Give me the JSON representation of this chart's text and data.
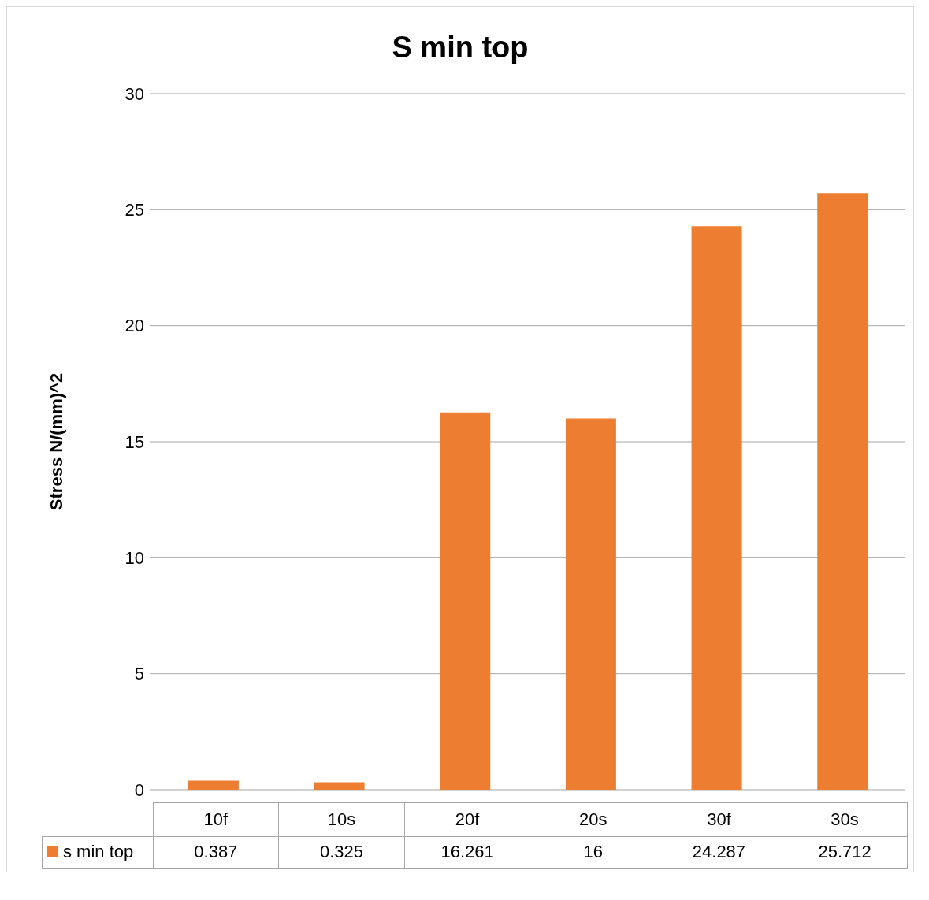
{
  "chart_data": {
    "type": "bar",
    "title": "S min top",
    "ylabel": "Stress N/(mm)^2",
    "categories": [
      "10f",
      "10s",
      "20f",
      "20s",
      "30f",
      "30s"
    ],
    "series": [
      {
        "name": "s min top",
        "color": "#ed7d31",
        "values": [
          0.387,
          0.325,
          16.261,
          16,
          24.287,
          25.712
        ]
      }
    ],
    "ylim": [
      0,
      30
    ],
    "yticks": [
      0,
      5,
      10,
      15,
      20,
      25,
      30
    ],
    "grid": "y",
    "legend": "bottom",
    "data_labels": true
  }
}
